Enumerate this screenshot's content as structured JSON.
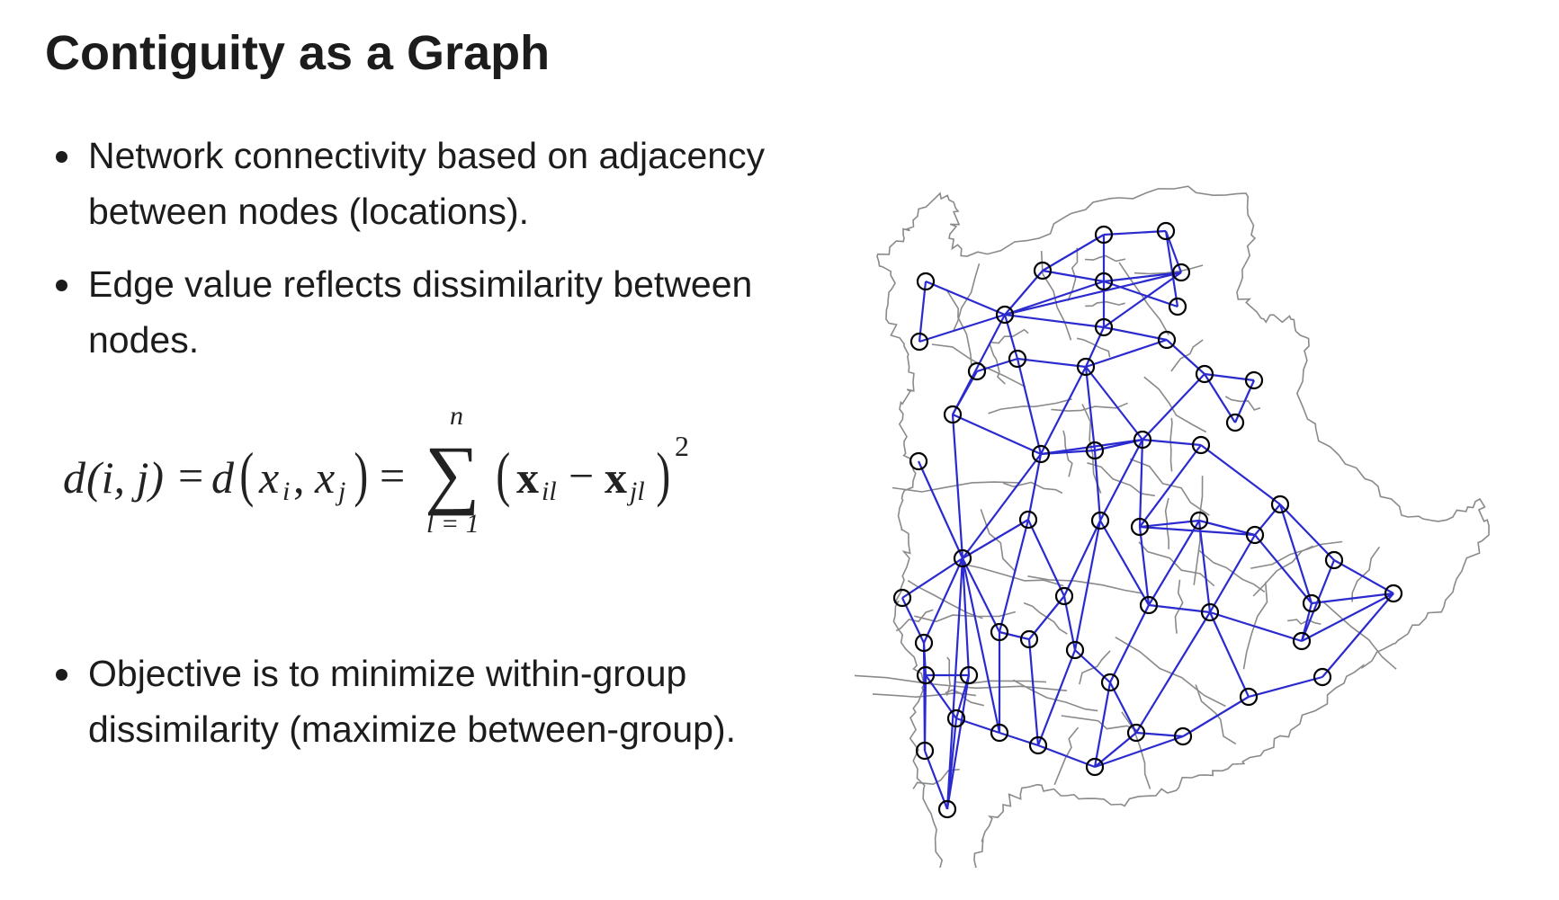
{
  "slide": {
    "title": "Contiguity as a Graph",
    "bullets_top": [
      "Network connectivity based on adjacency between nodes (locations).",
      "Edge value reflects dissimilarity between nodes."
    ],
    "bullets_bottom": [
      "Objective is to minimize within-group dissimilarity (maximize between-group)."
    ]
  },
  "formula": {
    "lhs_d": "d",
    "lhs_args": "(i, j)",
    "eq1": "=",
    "mid_d": "d",
    "mid_x1": "x",
    "mid_sub1": "i",
    "mid_comma": ",",
    "mid_x2": "x",
    "mid_sub2": "j",
    "eq2": "=",
    "sum_symbol": "∑",
    "sum_upper": "n",
    "sum_lower": "l = 1",
    "term_x1": "x",
    "term_sub1": "il",
    "minus": "−",
    "term_x2": "x",
    "term_sub2": "jl",
    "exponent": "2"
  },
  "graph": {
    "node_color": "#000000",
    "edge_color": "#2a2acf",
    "boundary_color": "#8a8a8a",
    "nodes": [
      [
        0,
        44,
        108
      ],
      [
        1,
        174,
        96
      ],
      [
        2,
        242,
        56
      ],
      [
        3,
        311,
        52
      ],
      [
        4,
        328,
        98
      ],
      [
        5,
        242,
        108
      ],
      [
        6,
        37,
        175
      ],
      [
        7,
        132,
        145
      ],
      [
        8,
        324,
        136
      ],
      [
        9,
        312,
        173
      ],
      [
        10,
        242,
        159
      ],
      [
        11,
        101,
        208
      ],
      [
        12,
        146,
        194
      ],
      [
        13,
        222,
        203
      ],
      [
        14,
        354,
        211
      ],
      [
        15,
        409,
        218
      ],
      [
        16,
        74,
        256
      ],
      [
        17,
        388,
        265
      ],
      [
        18,
        36,
        308
      ],
      [
        19,
        172,
        300
      ],
      [
        20,
        232,
        296
      ],
      [
        21,
        285,
        284
      ],
      [
        22,
        350,
        290
      ],
      [
        23,
        438,
        356
      ],
      [
        24,
        158,
        373
      ],
      [
        25,
        238,
        374
      ],
      [
        26,
        282,
        381
      ],
      [
        27,
        348,
        374
      ],
      [
        28,
        410,
        390
      ],
      [
        29,
        85,
        416
      ],
      [
        30,
        498,
        418
      ],
      [
        31,
        18,
        460
      ],
      [
        32,
        198,
        458
      ],
      [
        33,
        292,
        468
      ],
      [
        34,
        360,
        476
      ],
      [
        35,
        473,
        466
      ],
      [
        36,
        564,
        455
      ],
      [
        37,
        42,
        510
      ],
      [
        38,
        126,
        498
      ],
      [
        39,
        159,
        506
      ],
      [
        40,
        210,
        518
      ],
      [
        41,
        462,
        508
      ],
      [
        42,
        44,
        546
      ],
      [
        43,
        92,
        546
      ],
      [
        44,
        249,
        554
      ],
      [
        45,
        403,
        570
      ],
      [
        46,
        485,
        548
      ],
      [
        47,
        78,
        594
      ],
      [
        48,
        126,
        610
      ],
      [
        49,
        169,
        624
      ],
      [
        50,
        278,
        610
      ],
      [
        51,
        330,
        614
      ],
      [
        52,
        43,
        630
      ],
      [
        53,
        232,
        648
      ],
      [
        54,
        68,
        695
      ]
    ],
    "edges": [
      [
        0,
        7
      ],
      [
        0,
        6
      ],
      [
        6,
        7
      ],
      [
        7,
        1
      ],
      [
        7,
        5
      ],
      [
        7,
        10
      ],
      [
        7,
        12
      ],
      [
        7,
        4
      ],
      [
        7,
        16
      ],
      [
        1,
        2
      ],
      [
        1,
        5
      ],
      [
        2,
        3
      ],
      [
        2,
        5
      ],
      [
        3,
        4
      ],
      [
        3,
        8
      ],
      [
        5,
        4
      ],
      [
        5,
        10
      ],
      [
        5,
        8
      ],
      [
        10,
        4
      ],
      [
        10,
        9
      ],
      [
        10,
        13
      ],
      [
        12,
        13
      ],
      [
        12,
        19
      ],
      [
        13,
        19
      ],
      [
        13,
        20
      ],
      [
        13,
        9
      ],
      [
        9,
        14
      ],
      [
        14,
        15
      ],
      [
        15,
        17
      ],
      [
        14,
        17
      ],
      [
        14,
        21
      ],
      [
        13,
        21
      ],
      [
        19,
        20
      ],
      [
        16,
        11
      ],
      [
        11,
        12
      ],
      [
        16,
        19
      ],
      [
        16,
        29
      ],
      [
        18,
        29
      ],
      [
        19,
        21
      ],
      [
        20,
        21
      ],
      [
        21,
        22
      ],
      [
        21,
        26
      ],
      [
        22,
        26
      ],
      [
        22,
        23
      ],
      [
        26,
        27
      ],
      [
        27,
        28
      ],
      [
        26,
        28
      ],
      [
        19,
        29
      ],
      [
        19,
        24
      ],
      [
        20,
        25
      ],
      [
        21,
        25
      ],
      [
        25,
        33
      ],
      [
        24,
        29
      ],
      [
        24,
        32
      ],
      [
        24,
        38
      ],
      [
        25,
        32
      ],
      [
        25,
        40
      ],
      [
        26,
        33
      ],
      [
        27,
        33
      ],
      [
        27,
        34
      ],
      [
        28,
        34
      ],
      [
        23,
        28
      ],
      [
        23,
        35
      ],
      [
        23,
        30
      ],
      [
        28,
        35
      ],
      [
        35,
        36
      ],
      [
        30,
        36
      ],
      [
        30,
        41
      ],
      [
        35,
        41
      ],
      [
        41,
        36
      ],
      [
        36,
        46
      ],
      [
        29,
        31
      ],
      [
        29,
        37
      ],
      [
        29,
        38
      ],
      [
        29,
        43
      ],
      [
        29,
        48
      ],
      [
        31,
        37
      ],
      [
        37,
        42
      ],
      [
        42,
        43
      ],
      [
        42,
        47
      ],
      [
        43,
        47
      ],
      [
        38,
        39
      ],
      [
        39,
        32
      ],
      [
        32,
        40
      ],
      [
        40,
        44
      ],
      [
        33,
        44
      ],
      [
        33,
        34
      ],
      [
        34,
        45
      ],
      [
        34,
        50
      ],
      [
        45,
        46
      ],
      [
        34,
        41
      ],
      [
        44,
        50
      ],
      [
        44,
        53
      ],
      [
        50,
        53
      ],
      [
        51,
        53
      ],
      [
        50,
        51
      ],
      [
        45,
        51
      ],
      [
        48,
        49
      ],
      [
        49,
        53
      ],
      [
        47,
        48
      ],
      [
        38,
        48
      ],
      [
        39,
        49
      ],
      [
        40,
        49
      ],
      [
        47,
        54
      ],
      [
        52,
        54
      ],
      [
        42,
        52
      ],
      [
        37,
        52
      ],
      [
        43,
        54
      ],
      [
        29,
        54
      ]
    ]
  }
}
